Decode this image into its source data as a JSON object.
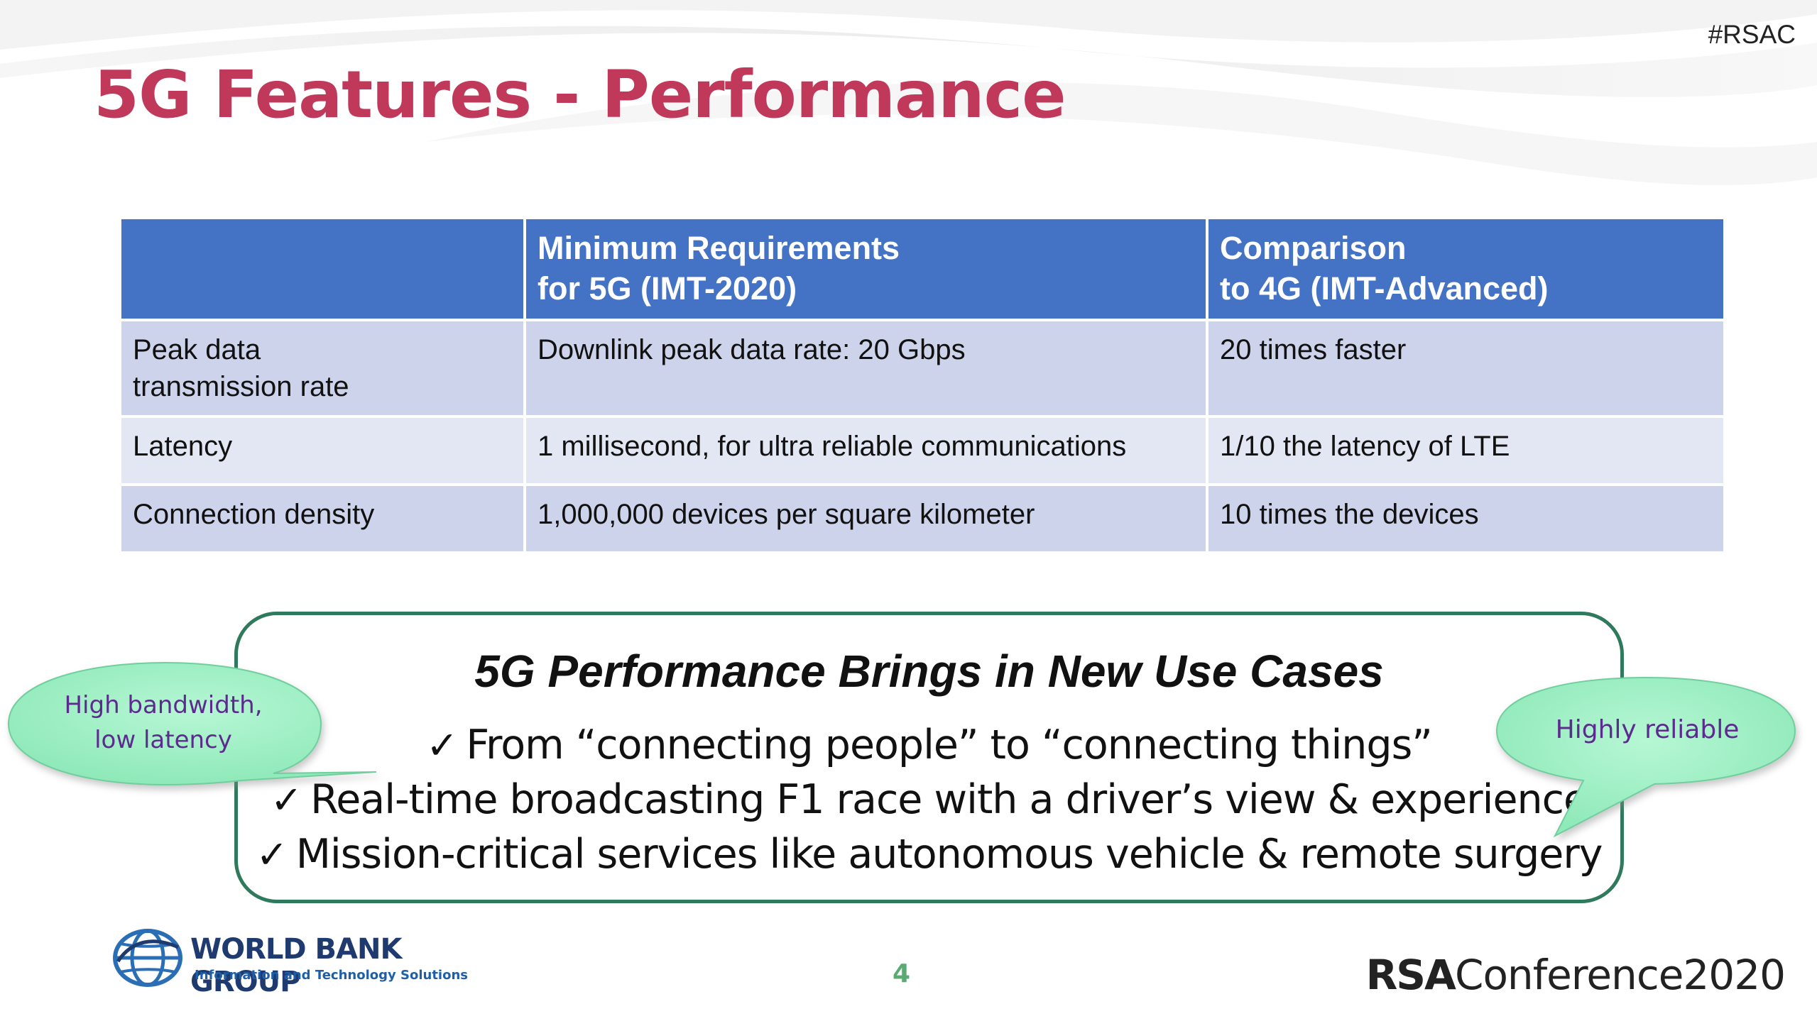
{
  "header": {
    "hashtag": "#RSAC",
    "title": "5G Features - Performance"
  },
  "table": {
    "headers": [
      {
        "line1": "",
        "line2": ""
      },
      {
        "line1": "Minimum Requirements",
        "line2": "for 5G (IMT-2020)"
      },
      {
        "line1": "Comparison",
        "line2": "to 4G (IMT-Advanced)"
      }
    ],
    "rows": [
      {
        "feature_line1": "Peak data",
        "feature_line2": "transmission rate",
        "requirement": "Downlink peak data rate: 20 Gbps",
        "comparison": "20 times faster"
      },
      {
        "feature_line1": "Latency",
        "feature_line2": "",
        "requirement": "1 millisecond, for ultra reliable communications",
        "comparison": "1/10 the latency of LTE"
      },
      {
        "feature_line1": "Connection density",
        "feature_line2": "",
        "requirement": "1,000,000 devices per square kilometer",
        "comparison": "10 times the devices"
      }
    ]
  },
  "use_cases": {
    "title": "5G Performance Brings in New Use Cases",
    "check_glyph": "✓",
    "items": [
      "From “connecting people” to “connecting things”",
      "Real-time broadcasting F1 race with a driver’s view & experience",
      "Mission-critical services like autonomous vehicle & remote surgery"
    ]
  },
  "callouts": {
    "left_line1": "High bandwidth,",
    "left_line2": "low latency",
    "right": "Highly reliable",
    "fill_color": "#9ff0c4",
    "text_color": "#5b2c8e"
  },
  "footer": {
    "logo_name": "WORLD BANK GROUP",
    "logo_subtitle": "Information and Technology Solutions",
    "page_number": "4",
    "conference_bold": "RSA",
    "conference_rest": "Conference2020"
  },
  "colors": {
    "title": "#c0395a",
    "table_header": "#4472c4",
    "table_row_dark": "#cdd3ea",
    "table_row_light": "#e3e6f3",
    "box_border": "#2f7a5c",
    "page_number": "#5aaa72"
  }
}
